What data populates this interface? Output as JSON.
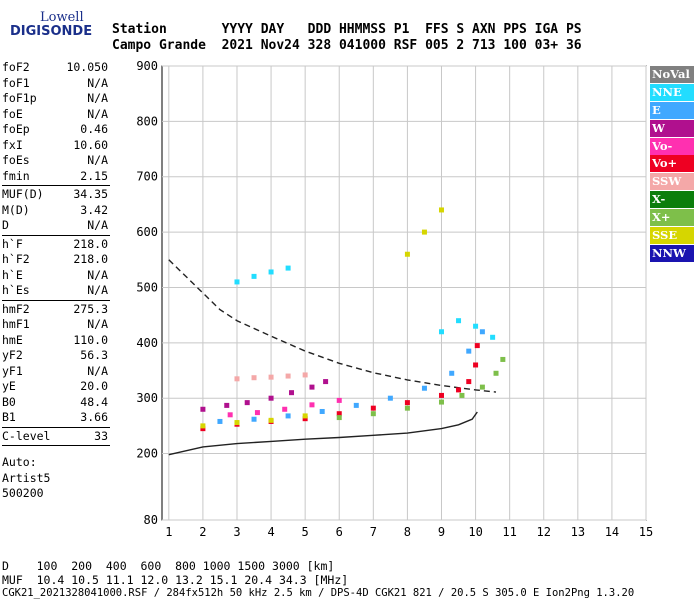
{
  "logo": {
    "top": "Lowell",
    "main": "DIGISONDE"
  },
  "header": {
    "line1": "Station       YYYY DAY   DDD HHMMSS P1  FFS S AXN PPS IGA PS",
    "line2": "Campo Grande  2021 Nov24 328 041000 RSF 005 2 713 100 03+ 36"
  },
  "params": {
    "group1": [
      {
        "label": "foF2",
        "value": "10.050"
      },
      {
        "label": "foF1",
        "value": "N/A"
      },
      {
        "label": "foF1p",
        "value": "N/A"
      },
      {
        "label": "foE",
        "value": "N/A"
      },
      {
        "label": "foEp",
        "value": "0.46"
      },
      {
        "label": "fxI",
        "value": "10.60"
      },
      {
        "label": "foEs",
        "value": "N/A"
      },
      {
        "label": "fmin",
        "value": "2.15"
      }
    ],
    "group2": [
      {
        "label": "MUF(D)",
        "value": "34.35"
      },
      {
        "label": "M(D)",
        "value": "3.42"
      },
      {
        "label": "D",
        "value": "N/A"
      }
    ],
    "group3": [
      {
        "label": "h`F",
        "value": "218.0"
      },
      {
        "label": "h`F2",
        "value": "218.0"
      },
      {
        "label": "h`E",
        "value": "N/A"
      },
      {
        "label": "h`Es",
        "value": "N/A"
      }
    ],
    "group4": [
      {
        "label": "hmF2",
        "value": "275.3"
      },
      {
        "label": "hmF1",
        "value": "N/A"
      },
      {
        "label": "hmE",
        "value": "110.0"
      },
      {
        "label": "yF2",
        "value": "56.3"
      },
      {
        "label": "yF1",
        "value": "N/A"
      },
      {
        "label": "yE",
        "value": "20.0"
      },
      {
        "label": "B0",
        "value": "48.4"
      },
      {
        "label": "B1",
        "value": "3.66"
      }
    ],
    "group5": [
      {
        "label": "C-level",
        "value": "33"
      }
    ],
    "notes": [
      "Auto:",
      "Artist5",
      "500200"
    ]
  },
  "legend": [
    {
      "label": "NoVal",
      "color": "#808080"
    },
    {
      "label": "NNE",
      "color": "#22ddff"
    },
    {
      "label": "E",
      "color": "#40a8ff"
    },
    {
      "label": "W",
      "color": "#b0108e"
    },
    {
      "label": "Vo-",
      "color": "#ff30b0"
    },
    {
      "label": "Vo+",
      "color": "#ee0022"
    },
    {
      "label": "SSW",
      "color": "#f4a8a8"
    },
    {
      "label": "X-",
      "color": "#0b7e0b"
    },
    {
      "label": "X+",
      "color": "#7ebf4a"
    },
    {
      "label": "SSE",
      "color": "#d6d600"
    },
    {
      "label": "NNW",
      "color": "#1a14b0"
    }
  ],
  "footer": {
    "line1": "D    100  200  400  600  800 1000 1500 3000 [km]",
    "line2": "MUF  10.4 10.5 11.1 12.0 13.2 15.1 20.4 34.3 [MHz]",
    "line3": "CGK21_2021328041000.RSF / 284fx512h 50 kHz 2.5 km / DPS-4D CGK21 821 / 20.5 S 305.0 E Ion2Png 1.3.20"
  },
  "chart_data": {
    "type": "scatter",
    "xlim": [
      0.8,
      15
    ],
    "ylim": [
      80,
      900
    ],
    "xticks": [
      1,
      2,
      3,
      4,
      5,
      6,
      7,
      8,
      9,
      10,
      11,
      12,
      13,
      14,
      15
    ],
    "yticks": [
      80,
      200,
      300,
      400,
      500,
      600,
      700,
      800,
      900
    ],
    "grid": true,
    "legend_position": "right",
    "series": [
      {
        "name": "Vo+",
        "color": "#ee0022",
        "points": [
          [
            2.0,
            245
          ],
          [
            3.0,
            253
          ],
          [
            4.0,
            258
          ],
          [
            5.0,
            263
          ],
          [
            6.0,
            272
          ],
          [
            7.0,
            282
          ],
          [
            8.0,
            292
          ],
          [
            9.0,
            305
          ],
          [
            9.5,
            315
          ],
          [
            9.8,
            330
          ],
          [
            10.0,
            360
          ],
          [
            10.05,
            395
          ]
        ]
      },
      {
        "name": "E",
        "color": "#40a8ff",
        "points": [
          [
            2.5,
            258
          ],
          [
            3.5,
            262
          ],
          [
            4.5,
            268
          ],
          [
            5.5,
            276
          ],
          [
            6.5,
            287
          ],
          [
            7.5,
            300
          ],
          [
            8.5,
            318
          ],
          [
            9.3,
            345
          ],
          [
            9.8,
            385
          ],
          [
            10.2,
            420
          ]
        ]
      },
      {
        "name": "W",
        "color": "#b0108e",
        "points": [
          [
            2.0,
            280
          ],
          [
            2.7,
            287
          ],
          [
            3.3,
            292
          ],
          [
            4.0,
            300
          ],
          [
            4.6,
            310
          ],
          [
            5.2,
            320
          ],
          [
            5.6,
            330
          ]
        ]
      },
      {
        "name": "SSW",
        "color": "#f4a8a8",
        "points": [
          [
            3.0,
            335
          ],
          [
            3.5,
            337
          ],
          [
            4.0,
            338
          ],
          [
            4.5,
            340
          ],
          [
            5.0,
            342
          ]
        ]
      },
      {
        "name": "X+",
        "color": "#7ebf4a",
        "points": [
          [
            6.0,
            265
          ],
          [
            7.0,
            272
          ],
          [
            8.0,
            282
          ],
          [
            9.0,
            293
          ],
          [
            9.6,
            305
          ],
          [
            10.2,
            320
          ],
          [
            10.6,
            345
          ],
          [
            10.8,
            370
          ]
        ]
      },
      {
        "name": "SSE",
        "color": "#d6d600",
        "points": [
          [
            2.0,
            250
          ],
          [
            3.0,
            256
          ],
          [
            4.0,
            260
          ],
          [
            5.0,
            268
          ],
          [
            8.0,
            560
          ],
          [
            8.5,
            600
          ],
          [
            9.0,
            640
          ]
        ]
      },
      {
        "name": "NNE",
        "color": "#22ddff",
        "points": [
          [
            3.0,
            510
          ],
          [
            3.5,
            520
          ],
          [
            4.0,
            528
          ],
          [
            4.5,
            535
          ],
          [
            9.0,
            420
          ],
          [
            9.5,
            440
          ],
          [
            10.0,
            430
          ],
          [
            10.5,
            410
          ]
        ]
      },
      {
        "name": "Vo-",
        "color": "#ff30b0",
        "points": [
          [
            2.8,
            270
          ],
          [
            3.6,
            274
          ],
          [
            4.4,
            280
          ],
          [
            5.2,
            288
          ],
          [
            6.0,
            296
          ]
        ]
      }
    ],
    "curves": [
      {
        "name": "profile",
        "style": "solid",
        "points": [
          [
            1.0,
            198
          ],
          [
            2.0,
            212
          ],
          [
            3.0,
            218
          ],
          [
            4.0,
            222
          ],
          [
            5.0,
            226
          ],
          [
            6.0,
            229
          ],
          [
            7.0,
            233
          ],
          [
            8.0,
            237
          ],
          [
            9.0,
            245
          ],
          [
            9.5,
            252
          ],
          [
            9.9,
            262
          ],
          [
            10.05,
            275
          ]
        ]
      },
      {
        "name": "MUF",
        "style": "dashed",
        "points": [
          [
            1.0,
            550
          ],
          [
            1.5,
            520
          ],
          [
            2.0,
            490
          ],
          [
            2.5,
            460
          ],
          [
            3.0,
            440
          ],
          [
            4.0,
            412
          ],
          [
            5.0,
            385
          ],
          [
            6.0,
            363
          ],
          [
            7.0,
            346
          ],
          [
            8.0,
            333
          ],
          [
            9.0,
            323
          ],
          [
            10.0,
            315
          ],
          [
            10.6,
            311
          ]
        ]
      }
    ]
  }
}
